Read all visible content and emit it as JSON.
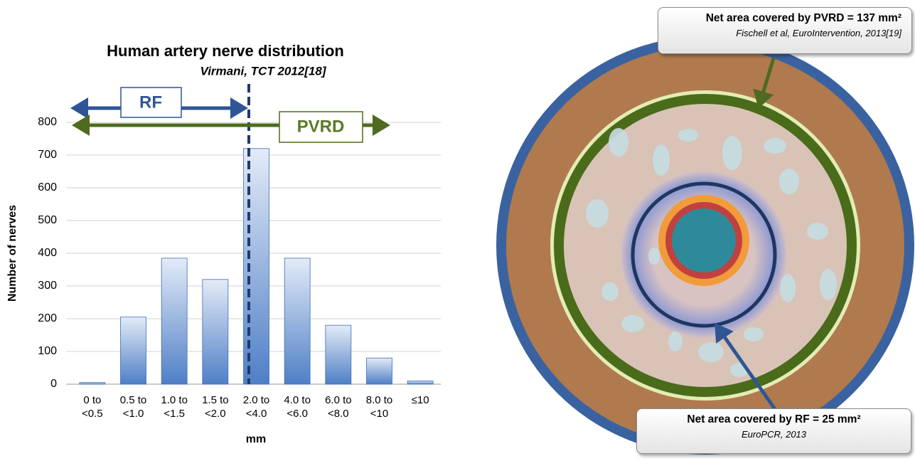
{
  "chart_data": {
    "type": "bar",
    "title": "Human artery nerve distribution",
    "subtitle": "Virmani, TCT 2012[18]",
    "y_label": "Number of nerves",
    "x_label": "mm",
    "categories": [
      "0 to <0.5",
      "0.5 to <1.0",
      "1.0 to <1.5",
      "1.5 to <2.0",
      "2.0 to <4.0",
      "4.0 to <6.0",
      "6.0 to <8.0",
      "8.0 to <10",
      "≤10"
    ],
    "values": [
      5,
      205,
      385,
      320,
      720,
      385,
      180,
      80,
      10
    ],
    "color": "#4f7fc6",
    "ylim": [
      0,
      800
    ],
    "yticks": [
      0,
      100,
      200,
      300,
      400,
      500,
      600,
      700,
      800
    ],
    "grid": true,
    "annotations": [
      "RF",
      "PVRD"
    ]
  },
  "diagram": {
    "pvrd_callout": {
      "title": "Net area covered by PVRD = 137 mm²",
      "source": "Fischell et al, EuroIntervention, 2013[19]"
    },
    "rf_callout": {
      "title": "Net area covered by RF = 25 mm²",
      "source": "EuroPCR, 2013"
    }
  }
}
